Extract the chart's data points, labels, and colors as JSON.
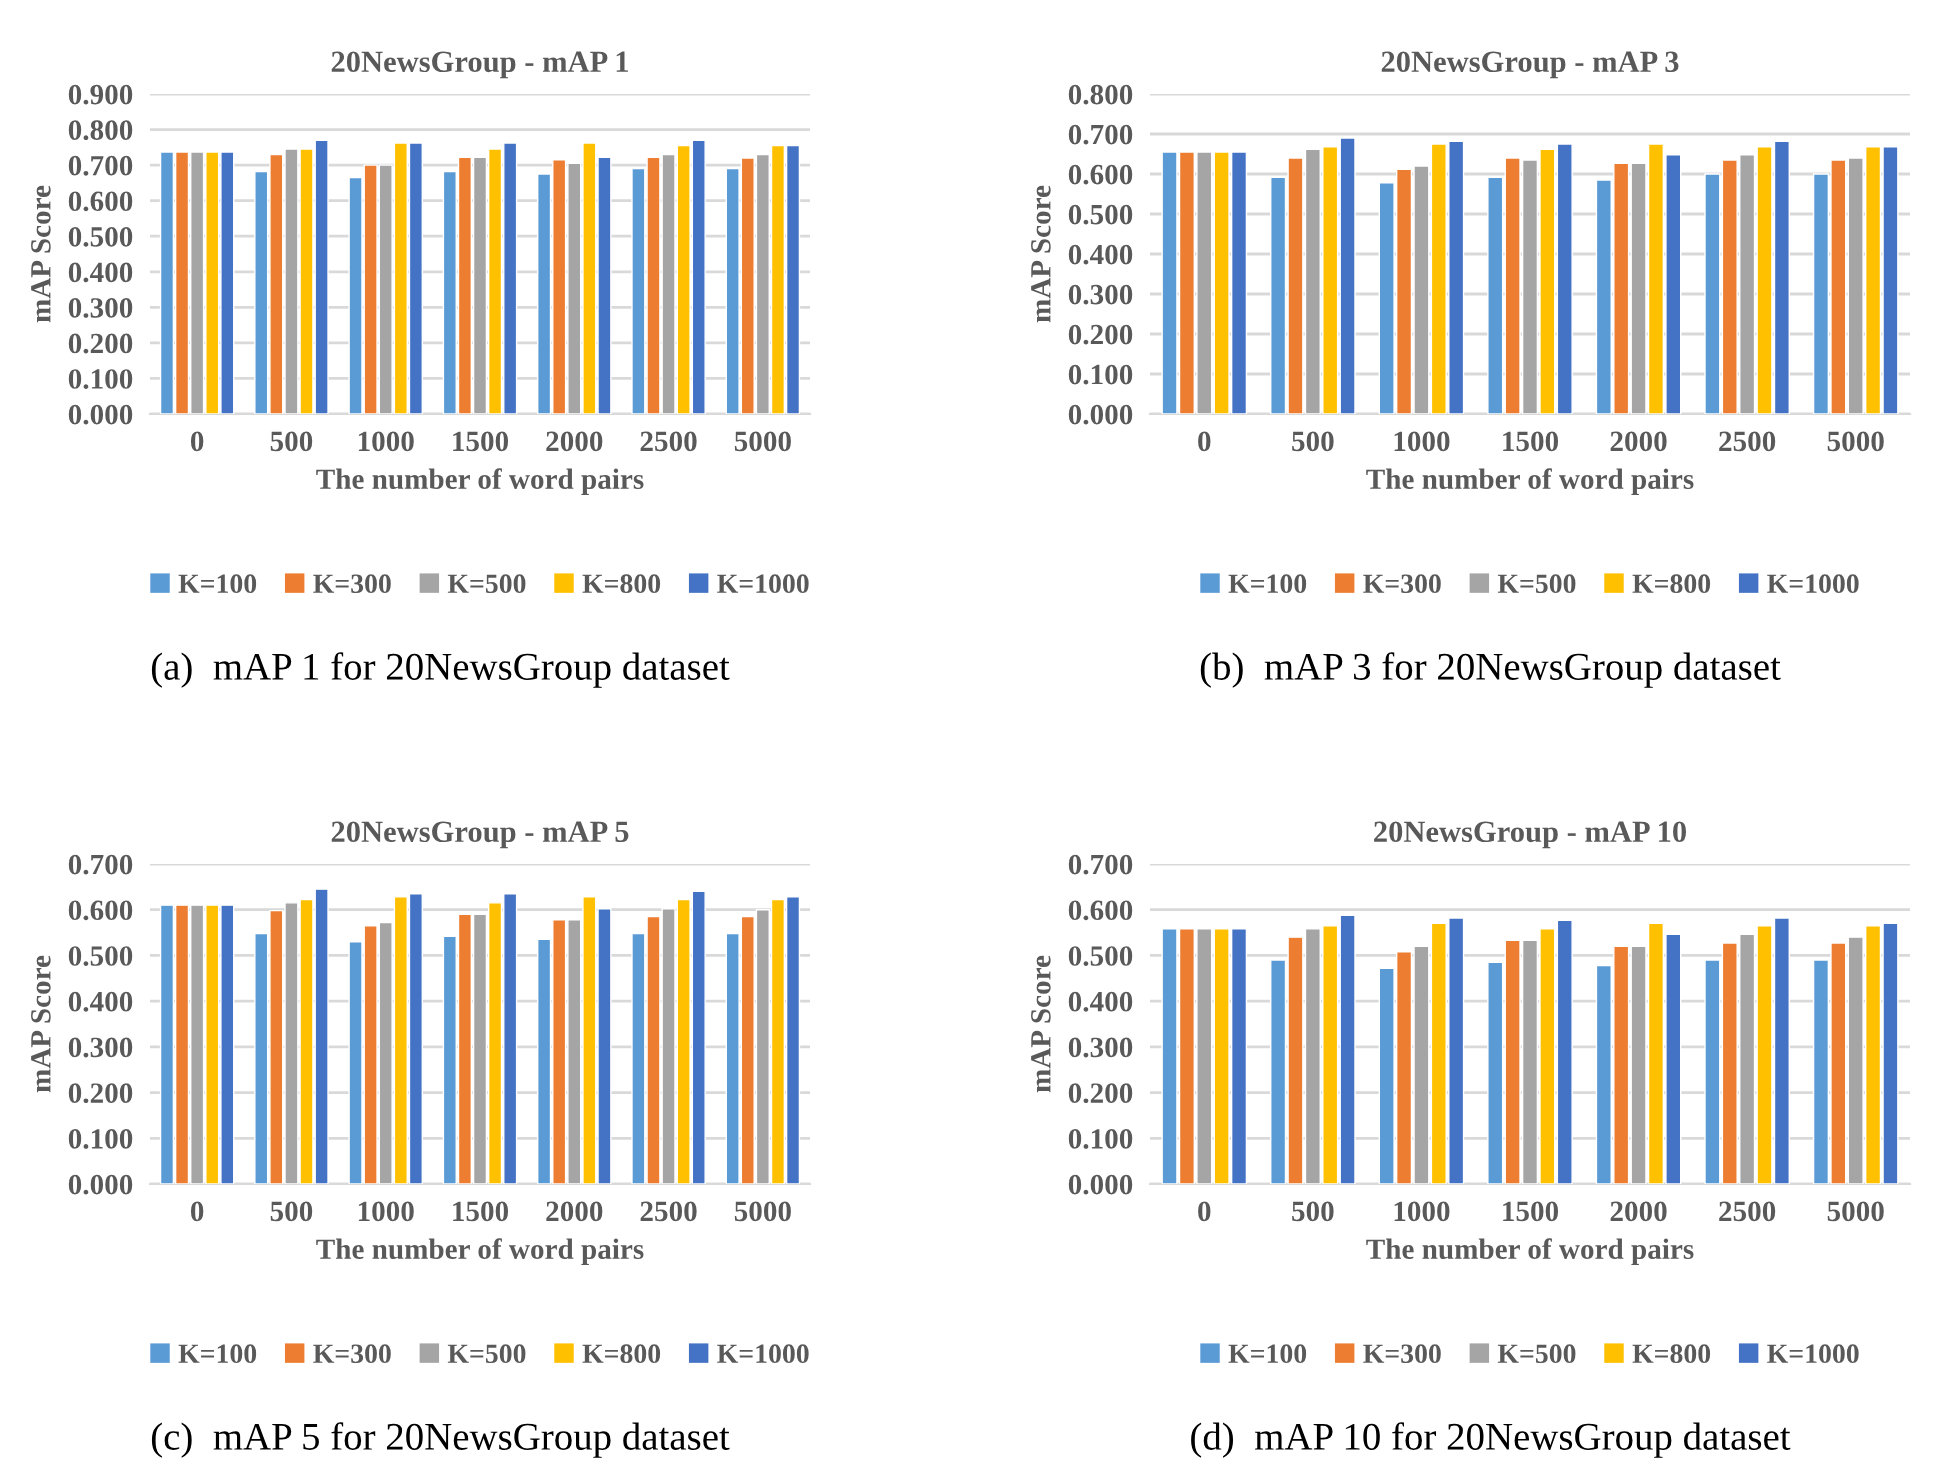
{
  "chart_data": [
    {
      "type": "bar",
      "title": "20NewsGroup - mAP 1",
      "xlabel": "The number of word pairs",
      "ylabel": "mAP Score",
      "categories": [
        "0",
        "500",
        "1000",
        "1500",
        "2000",
        "2500",
        "5000"
      ],
      "series": [
        {
          "name": "K=100",
          "color": "#5b9bd5",
          "values": [
            0.737,
            0.682,
            0.665,
            0.682,
            0.675,
            0.69,
            0.69
          ]
        },
        {
          "name": "K=300",
          "color": "#ed7d31",
          "values": [
            0.737,
            0.73,
            0.7,
            0.722,
            0.715,
            0.722,
            0.72
          ]
        },
        {
          "name": "K=500",
          "color": "#a5a5a5",
          "values": [
            0.737,
            0.745,
            0.7,
            0.722,
            0.705,
            0.73,
            0.73
          ]
        },
        {
          "name": "K=800",
          "color": "#ffc000",
          "values": [
            0.737,
            0.745,
            0.762,
            0.745,
            0.762,
            0.755,
            0.755
          ]
        },
        {
          "name": "K=1000",
          "color": "#4472c4",
          "values": [
            0.737,
            0.77,
            0.762,
            0.762,
            0.722,
            0.77,
            0.755
          ]
        }
      ],
      "ylim": [
        0,
        0.9
      ],
      "yticks": [
        {
          "value": 0,
          "label": "0.000"
        },
        {
          "value": 0.1,
          "label": "0.100"
        },
        {
          "value": 0.2,
          "label": "0.200"
        },
        {
          "value": 0.3,
          "label": "0.300"
        },
        {
          "value": 0.4,
          "label": "0.400"
        },
        {
          "value": 0.5,
          "label": "0.500"
        },
        {
          "value": 0.6,
          "label": "0.600"
        },
        {
          "value": 0.7,
          "label": "0.700"
        },
        {
          "value": 0.8,
          "label": "0.800"
        },
        {
          "value": 0.9,
          "label": "0.900"
        }
      ],
      "grid": "y",
      "legend": "bottom",
      "annotations": [
        "(a)  mAP 1 for 20NewsGroup dataset"
      ]
    },
    {
      "type": "bar",
      "title": "20NewsGroup - mAP 3",
      "xlabel": "The number of word pairs",
      "ylabel": "mAP Score",
      "categories": [
        "0",
        "500",
        "1000",
        "1500",
        "2000",
        "2500",
        "5000"
      ],
      "series": [
        {
          "name": "K=100",
          "color": "#5b9bd5",
          "values": [
            0.655,
            0.592,
            0.578,
            0.592,
            0.585,
            0.6,
            0.6
          ]
        },
        {
          "name": "K=300",
          "color": "#ed7d31",
          "values": [
            0.655,
            0.64,
            0.612,
            0.64,
            0.627,
            0.635,
            0.635
          ]
        },
        {
          "name": "K=500",
          "color": "#a5a5a5",
          "values": [
            0.655,
            0.662,
            0.62,
            0.635,
            0.627,
            0.648,
            0.64
          ]
        },
        {
          "name": "K=800",
          "color": "#ffc000",
          "values": [
            0.655,
            0.668,
            0.675,
            0.662,
            0.675,
            0.668,
            0.668
          ]
        },
        {
          "name": "K=1000",
          "color": "#4472c4",
          "values": [
            0.655,
            0.69,
            0.682,
            0.675,
            0.648,
            0.682,
            0.668
          ]
        }
      ],
      "ylim": [
        0,
        0.8
      ],
      "yticks": [
        {
          "value": 0,
          "label": "0.000"
        },
        {
          "value": 0.1,
          "label": "0.100"
        },
        {
          "value": 0.2,
          "label": "0.200"
        },
        {
          "value": 0.3,
          "label": "0.300"
        },
        {
          "value": 0.4,
          "label": "0.400"
        },
        {
          "value": 0.5,
          "label": "0.500"
        },
        {
          "value": 0.6,
          "label": "0.600"
        },
        {
          "value": 0.7,
          "label": "0.700"
        },
        {
          "value": 0.8,
          "label": "0.800"
        }
      ],
      "grid": "y",
      "legend": "bottom",
      "annotations": [
        "(b)  mAP 3 for 20NewsGroup dataset"
      ]
    },
    {
      "type": "bar",
      "title": "20NewsGroup - mAP 5",
      "xlabel": "The number of word pairs",
      "ylabel": "mAP Score",
      "categories": [
        "0",
        "500",
        "1000",
        "1500",
        "2000",
        "2500",
        "5000"
      ],
      "series": [
        {
          "name": "K=100",
          "color": "#5b9bd5",
          "values": [
            0.61,
            0.548,
            0.53,
            0.542,
            0.535,
            0.548,
            0.548
          ]
        },
        {
          "name": "K=300",
          "color": "#ed7d31",
          "values": [
            0.61,
            0.598,
            0.565,
            0.59,
            0.578,
            0.585,
            0.585
          ]
        },
        {
          "name": "K=500",
          "color": "#a5a5a5",
          "values": [
            0.61,
            0.615,
            0.572,
            0.59,
            0.578,
            0.602,
            0.6
          ]
        },
        {
          "name": "K=800",
          "color": "#ffc000",
          "values": [
            0.61,
            0.622,
            0.628,
            0.615,
            0.628,
            0.622,
            0.622
          ]
        },
        {
          "name": "K=1000",
          "color": "#4472c4",
          "values": [
            0.61,
            0.645,
            0.635,
            0.635,
            0.602,
            0.64,
            0.628
          ]
        }
      ],
      "ylim": [
        0,
        0.7
      ],
      "yticks": [
        {
          "value": 0,
          "label": "0.000"
        },
        {
          "value": 0.1,
          "label": "0.100"
        },
        {
          "value": 0.2,
          "label": "0.200"
        },
        {
          "value": 0.3,
          "label": "0.300"
        },
        {
          "value": 0.4,
          "label": "0.400"
        },
        {
          "value": 0.5,
          "label": "0.500"
        },
        {
          "value": 0.6,
          "label": "0.600"
        },
        {
          "value": 0.7,
          "label": "0.700"
        }
      ],
      "grid": "y",
      "legend": "bottom",
      "annotations": [
        "(c)  mAP 5 for 20NewsGroup dataset"
      ]
    },
    {
      "type": "bar",
      "title": "20NewsGroup - mAP 10",
      "xlabel": "The number of word pairs",
      "ylabel": "mAP Score",
      "categories": [
        "0",
        "500",
        "1000",
        "1500",
        "2000",
        "2500",
        "5000"
      ],
      "series": [
        {
          "name": "K=100",
          "color": "#5b9bd5",
          "values": [
            0.558,
            0.49,
            0.472,
            0.485,
            0.478,
            0.49,
            0.49
          ]
        },
        {
          "name": "K=300",
          "color": "#ed7d31",
          "values": [
            0.558,
            0.54,
            0.508,
            0.533,
            0.52,
            0.527,
            0.527
          ]
        },
        {
          "name": "K=500",
          "color": "#a5a5a5",
          "values": [
            0.558,
            0.558,
            0.52,
            0.533,
            0.52,
            0.546,
            0.54
          ]
        },
        {
          "name": "K=800",
          "color": "#ffc000",
          "values": [
            0.558,
            0.565,
            0.57,
            0.558,
            0.57,
            0.565,
            0.565
          ]
        },
        {
          "name": "K=1000",
          "color": "#4472c4",
          "values": [
            0.558,
            0.588,
            0.582,
            0.577,
            0.546,
            0.582,
            0.57
          ]
        }
      ],
      "ylim": [
        0,
        0.7
      ],
      "yticks": [
        {
          "value": 0,
          "label": "0.000"
        },
        {
          "value": 0.1,
          "label": "0.100"
        },
        {
          "value": 0.2,
          "label": "0.200"
        },
        {
          "value": 0.3,
          "label": "0.300"
        },
        {
          "value": 0.4,
          "label": "0.400"
        },
        {
          "value": 0.5,
          "label": "0.500"
        },
        {
          "value": 0.6,
          "label": "0.600"
        },
        {
          "value": 0.7,
          "label": "0.700"
        }
      ],
      "grid": "y",
      "legend": "bottom",
      "annotations": [
        "(d)  mAP 10 for 20NewsGroup dataset"
      ]
    }
  ]
}
